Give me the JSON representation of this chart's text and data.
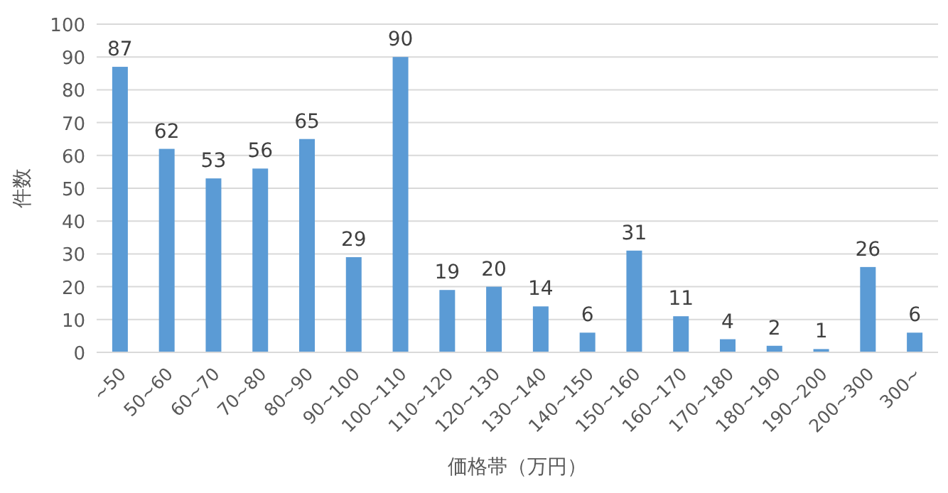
{
  "chart_data": {
    "type": "bar",
    "xlabel": "価格帯（万円）",
    "ylabel": "件数",
    "categories": [
      "~50",
      "50~60",
      "60~70",
      "70~80",
      "80~90",
      "90~100",
      "100~110",
      "110~120",
      "120~130",
      "130~140",
      "140~150",
      "150~160",
      "160~170",
      "170~180",
      "180~190",
      "190~200",
      "200~300",
      "300~"
    ],
    "values": [
      87,
      62,
      53,
      56,
      65,
      29,
      90,
      19,
      20,
      14,
      6,
      31,
      11,
      4,
      2,
      1,
      26,
      6
    ],
    "color": "#5b9bd5",
    "ylim": [
      0,
      100
    ],
    "yticks": [
      0,
      10,
      20,
      30,
      40,
      50,
      60,
      70,
      80,
      90,
      100
    ],
    "grid": "y",
    "data_labels": true
  }
}
